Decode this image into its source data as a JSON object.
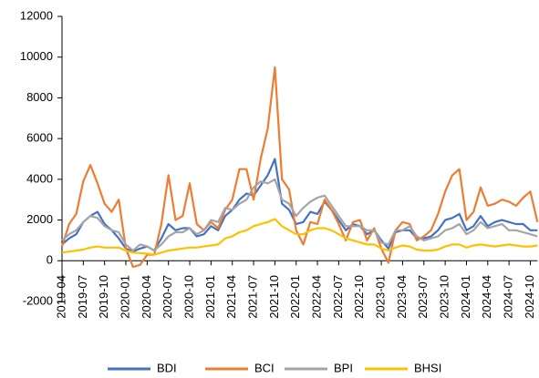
{
  "chart_data": {
    "type": "line",
    "categories": [
      "2019-04",
      null,
      null,
      "2019-07",
      null,
      null,
      "2019-10",
      null,
      null,
      "2020-01",
      null,
      null,
      "2020-04",
      null,
      null,
      "2020-07",
      null,
      null,
      "2020-10",
      null,
      null,
      "2021-01",
      null,
      null,
      "2021-04",
      null,
      null,
      "2021-07",
      null,
      null,
      "2021-10",
      null,
      null,
      "2022-01",
      null,
      null,
      "2022-04",
      null,
      null,
      "2022-07",
      null,
      null,
      "2022-10",
      null,
      null,
      "2023-01",
      null,
      null,
      "2023-04",
      null,
      null,
      "2023-07",
      null,
      null,
      "2023-10",
      null,
      null,
      "2024-01",
      null,
      null,
      "2024-04",
      null,
      null,
      "2024-07",
      null,
      null,
      "2024-10",
      null
    ],
    "series": [
      {
        "name": "BDI",
        "color": "#4472c4",
        "values": [
          800,
          1100,
          1300,
          1900,
          2200,
          2400,
          1800,
          1500,
          1100,
          600,
          450,
          600,
          700,
          500,
          1100,
          1800,
          1500,
          1600,
          1600,
          1200,
          1300,
          1700,
          1500,
          2200,
          2500,
          3000,
          3300,
          3200,
          3700,
          4200,
          5000,
          2800,
          2500,
          1800,
          1900,
          2400,
          2300,
          2900,
          2500,
          2000,
          1500,
          1800,
          1700,
          1300,
          1500,
          1000,
          600,
          1400,
          1500,
          1500,
          1100,
          1100,
          1200,
          1500,
          2000,
          2100,
          2300,
          1500,
          1700,
          2200,
          1700,
          1900,
          2000,
          1900,
          1800,
          1800,
          1500,
          1500
        ]
      },
      {
        "name": "BCI",
        "color": "#ed7d31",
        "values": [
          700,
          1800,
          2300,
          3900,
          4700,
          3800,
          2800,
          2400,
          3000,
          600,
          -300,
          -200,
          300,
          300,
          1800,
          4200,
          2000,
          2200,
          3800,
          1800,
          1500,
          1900,
          1600,
          2500,
          3000,
          4500,
          4500,
          3000,
          5000,
          6500,
          9500,
          4000,
          3500,
          1500,
          800,
          1900,
          1800,
          3000,
          2500,
          1800,
          1000,
          1900,
          2000,
          1000,
          1600,
          600,
          -100,
          1500,
          1900,
          1800,
          1000,
          1200,
          1500,
          2300,
          3400,
          4200,
          4500,
          2000,
          2400,
          3600,
          2700,
          2800,
          3000,
          2900,
          2700,
          3100,
          3400,
          1900
        ]
      },
      {
        "name": "BPI",
        "color": "#a5a5a5",
        "values": [
          1000,
          1300,
          1500,
          1900,
          2200,
          2100,
          1700,
          1500,
          1400,
          800,
          500,
          800,
          700,
          500,
          800,
          1200,
          1400,
          1400,
          1600,
          1300,
          1500,
          2000,
          1900,
          2600,
          2500,
          2800,
          3000,
          3600,
          3900,
          3800,
          4000,
          3000,
          2800,
          2200,
          2600,
          2900,
          3100,
          3200,
          2700,
          2200,
          1700,
          1700,
          1700,
          1500,
          1500,
          900,
          800,
          1500,
          1500,
          1700,
          1200,
          1000,
          1100,
          1200,
          1500,
          1600,
          1800,
          1300,
          1500,
          1900,
          1600,
          1700,
          1800,
          1500,
          1500,
          1400,
          1300,
          1200
        ]
      },
      {
        "name": "BHSI",
        "color": "#ffc000",
        "values": [
          400,
          450,
          500,
          550,
          650,
          700,
          650,
          650,
          650,
          500,
          400,
          380,
          350,
          300,
          400,
          500,
          550,
          600,
          650,
          650,
          700,
          750,
          800,
          1100,
          1200,
          1400,
          1500,
          1700,
          1800,
          1900,
          2050,
          1700,
          1500,
          1300,
          1300,
          1500,
          1600,
          1600,
          1500,
          1300,
          1100,
          1000,
          900,
          800,
          800,
          600,
          500,
          650,
          750,
          700,
          550,
          500,
          500,
          550,
          700,
          800,
          800,
          650,
          750,
          800,
          750,
          700,
          750,
          800,
          750,
          700,
          700,
          750
        ]
      }
    ],
    "ylim": [
      -2000,
      12000
    ],
    "yticks": [
      -2000,
      0,
      2000,
      4000,
      6000,
      8000,
      10000,
      12000
    ],
    "grid": false,
    "legend": "bottom"
  }
}
